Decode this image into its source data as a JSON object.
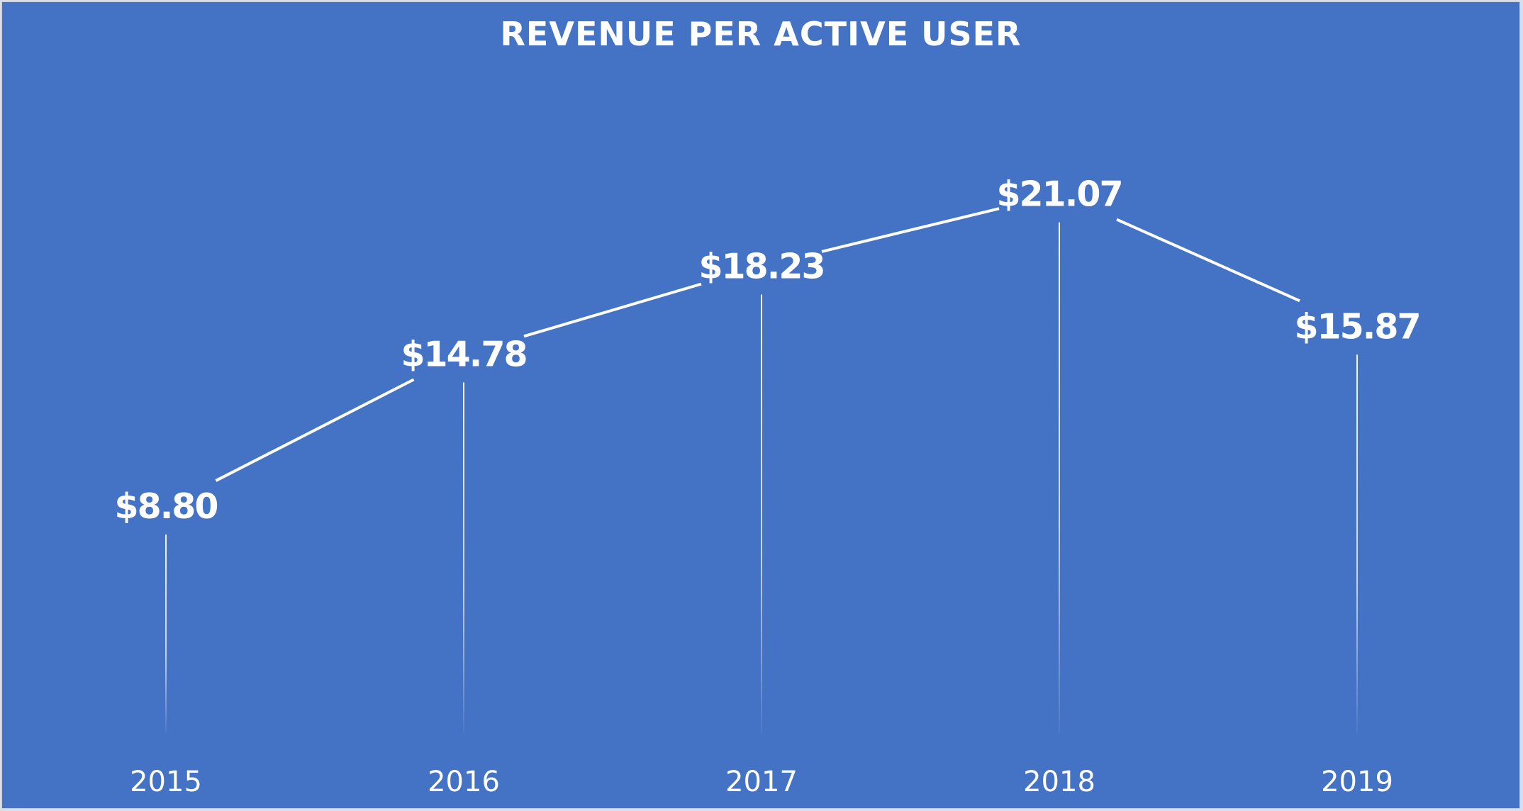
{
  "chart_data": {
    "type": "line",
    "title": "REVENUE PER ACTIVE USER",
    "xlabel": "",
    "ylabel": "",
    "categories": [
      "2015",
      "2016",
      "2017",
      "2018",
      "2019"
    ],
    "values": [
      8.8,
      14.78,
      18.23,
      21.07,
      15.87
    ],
    "data_labels": [
      "$8.80",
      "$14.78",
      "$18.23",
      "$21.07",
      "$15.87"
    ],
    "series": [
      {
        "name": "Revenue per active user",
        "values": [
          8.8,
          14.78,
          18.23,
          21.07,
          15.87
        ]
      }
    ],
    "grid": false,
    "legend": "none",
    "drop_lines": true,
    "colors": {
      "background": "#4472c4",
      "line": "#ffffff",
      "text": "#ffffff"
    }
  }
}
